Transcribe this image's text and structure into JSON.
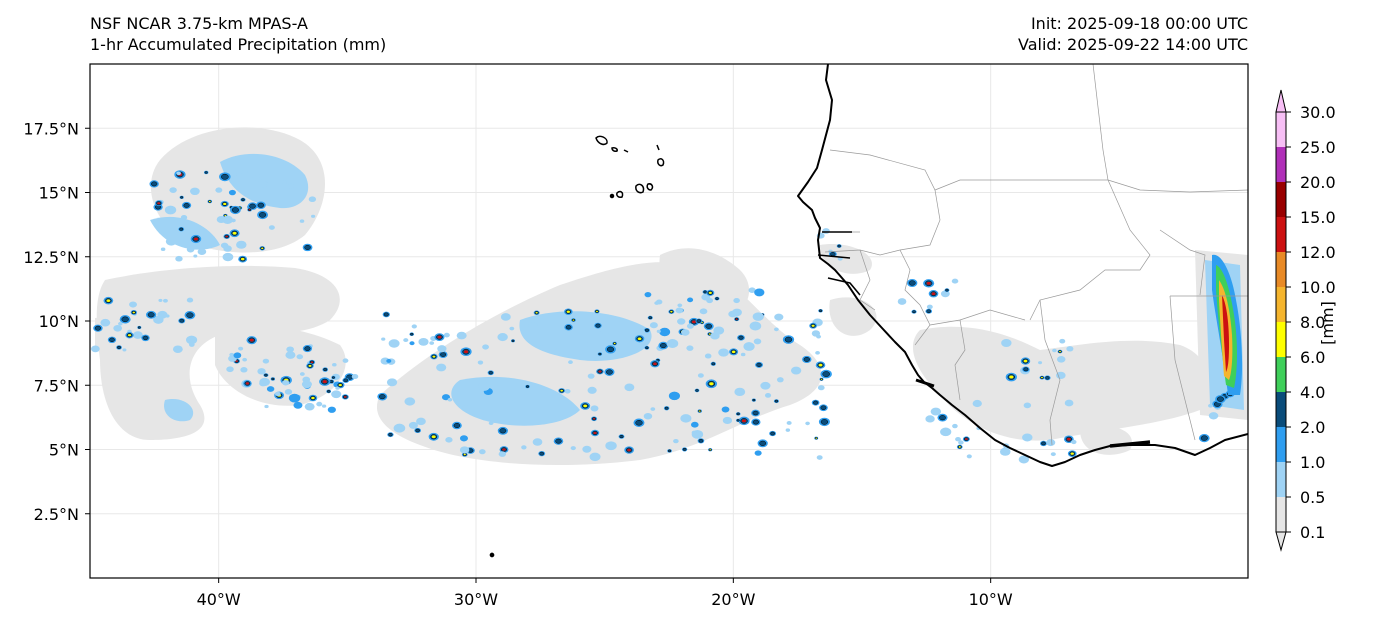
{
  "header": {
    "model": "NSF NCAR 3.75-km MPAS-A",
    "field": "1-hr Accumulated Precipitation (mm)",
    "init": "Init: 2025-09-18 00:00 UTC",
    "valid": "Valid: 2025-09-22 14:00 UTC"
  },
  "map": {
    "extent": {
      "lon": [
        -45,
        0
      ],
      "lat": [
        0,
        20
      ]
    },
    "lon_ticks": [
      {
        "value": -40,
        "label": "40°W"
      },
      {
        "value": -30,
        "label": "30°W"
      },
      {
        "value": -20,
        "label": "20°W"
      },
      {
        "value": -10,
        "label": "10°W"
      }
    ],
    "lat_ticks": [
      {
        "value": 17.5,
        "label": "17.5°N"
      },
      {
        "value": 15,
        "label": "15°N"
      },
      {
        "value": 12.5,
        "label": "12.5°N"
      },
      {
        "value": 10,
        "label": "10°N"
      },
      {
        "value": 7.5,
        "label": "7.5°N"
      },
      {
        "value": 5,
        "label": "5°N"
      },
      {
        "value": 2.5,
        "label": "2.5°N"
      }
    ],
    "gridlines": true
  },
  "colorbar": {
    "label": "[mm]",
    "levels": [
      "0.1",
      "0.5",
      "1.0",
      "2.0",
      "4.0",
      "6.0",
      "8.0",
      "10.0",
      "12.0",
      "15.0",
      "20.0",
      "25.0",
      "30.0"
    ],
    "colors": [
      "#e6e6e6",
      "#9fd3f5",
      "#2f9ef0",
      "#0a4c7a",
      "#3fcf5a",
      "#ffff00",
      "#f5b52e",
      "#e88a26",
      "#cc1111",
      "#990000",
      "#b030b8",
      "#f7bff5"
    ]
  }
}
